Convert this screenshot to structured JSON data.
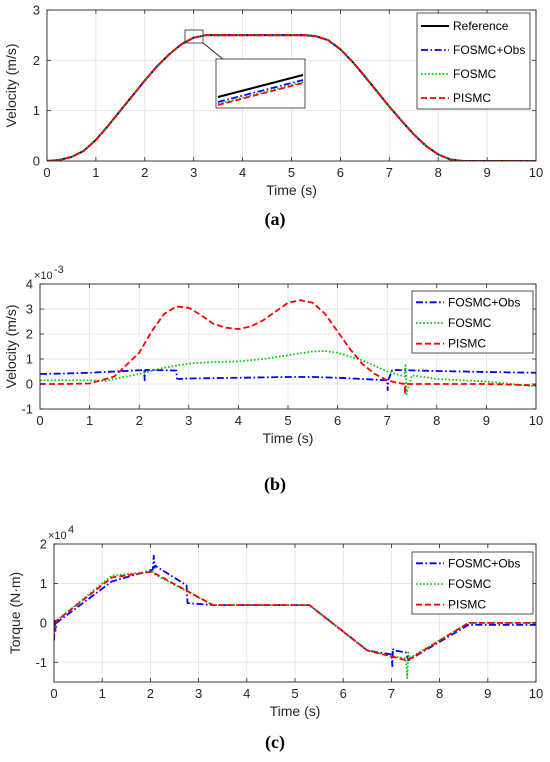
{
  "chart_data": [
    {
      "type": "line",
      "panel_label": "a",
      "xlabel": "Time (s)",
      "ylabel": "Velocity (m/s)",
      "xlim": [
        0,
        10
      ],
      "ylim": [
        0,
        3
      ],
      "xticks": [
        0,
        1,
        2,
        3,
        4,
        5,
        6,
        7,
        8,
        9,
        10
      ],
      "yticks": [
        0,
        1,
        2,
        3
      ],
      "exponent": "",
      "grid": true,
      "legend_position": "top-right",
      "has_inset": true,
      "series": [
        {
          "name": "Reference",
          "color": "#000000",
          "style": "solid",
          "x": [
            0,
            0.25,
            0.5,
            0.75,
            1,
            1.25,
            1.5,
            1.75,
            2,
            2.25,
            2.5,
            2.75,
            3,
            3.25,
            3.5,
            4,
            4.5,
            5,
            5.25,
            5.5,
            5.75,
            6,
            6.25,
            6.5,
            6.75,
            7,
            7.25,
            7.5,
            7.75,
            8,
            8.25,
            8.5,
            9,
            10
          ],
          "y": [
            0,
            0.02,
            0.08,
            0.2,
            0.42,
            0.7,
            1.0,
            1.3,
            1.6,
            1.88,
            2.12,
            2.32,
            2.45,
            2.5,
            2.5,
            2.5,
            2.5,
            2.5,
            2.5,
            2.48,
            2.4,
            2.22,
            1.97,
            1.68,
            1.38,
            1.08,
            0.8,
            0.53,
            0.3,
            0.13,
            0.03,
            0,
            0,
            0
          ]
        },
        {
          "name": "FOSMC+Obs",
          "color": "#0000ff",
          "style": "dashdot",
          "x": [
            0,
            0.25,
            0.5,
            0.75,
            1,
            1.25,
            1.5,
            1.75,
            2,
            2.25,
            2.5,
            2.75,
            3,
            3.25,
            3.5,
            4,
            4.5,
            5,
            5.25,
            5.5,
            5.75,
            6,
            6.25,
            6.5,
            6.75,
            7,
            7.25,
            7.5,
            7.75,
            8,
            8.25,
            8.5,
            9,
            10
          ],
          "y": [
            0,
            0.02,
            0.08,
            0.2,
            0.42,
            0.7,
            1.0,
            1.3,
            1.6,
            1.88,
            2.12,
            2.32,
            2.45,
            2.5,
            2.5,
            2.5,
            2.5,
            2.5,
            2.5,
            2.48,
            2.4,
            2.22,
            1.97,
            1.68,
            1.38,
            1.08,
            0.8,
            0.53,
            0.3,
            0.13,
            0.03,
            0,
            0,
            0
          ]
        },
        {
          "name": "FOSMC",
          "color": "#00cc00",
          "style": "dotted",
          "x": [
            0,
            0.25,
            0.5,
            0.75,
            1,
            1.25,
            1.5,
            1.75,
            2,
            2.25,
            2.5,
            2.75,
            3,
            3.25,
            3.5,
            4,
            4.5,
            5,
            5.25,
            5.5,
            5.75,
            6,
            6.25,
            6.5,
            6.75,
            7,
            7.25,
            7.5,
            7.75,
            8,
            8.25,
            8.5,
            9,
            10
          ],
          "y": [
            0,
            0.02,
            0.08,
            0.2,
            0.42,
            0.7,
            1.0,
            1.3,
            1.6,
            1.88,
            2.12,
            2.32,
            2.45,
            2.5,
            2.5,
            2.5,
            2.5,
            2.5,
            2.5,
            2.48,
            2.4,
            2.22,
            1.97,
            1.68,
            1.38,
            1.08,
            0.8,
            0.53,
            0.3,
            0.13,
            0.03,
            0,
            0,
            0
          ]
        },
        {
          "name": "PISMC",
          "color": "#ff0000",
          "style": "dashed",
          "x": [
            0,
            0.25,
            0.5,
            0.75,
            1,
            1.25,
            1.5,
            1.75,
            2,
            2.25,
            2.5,
            2.75,
            3,
            3.25,
            3.5,
            4,
            4.5,
            5,
            5.25,
            5.5,
            5.75,
            6,
            6.25,
            6.5,
            6.75,
            7,
            7.25,
            7.5,
            7.75,
            8,
            8.25,
            8.5,
            9,
            10
          ],
          "y": [
            0,
            0.02,
            0.08,
            0.2,
            0.42,
            0.7,
            1.0,
            1.3,
            1.6,
            1.88,
            2.12,
            2.32,
            2.45,
            2.5,
            2.5,
            2.5,
            2.5,
            2.5,
            2.5,
            2.48,
            2.4,
            2.22,
            1.97,
            1.68,
            1.38,
            1.08,
            0.8,
            0.53,
            0.3,
            0.13,
            0.03,
            0,
            0,
            0
          ]
        }
      ]
    },
    {
      "type": "line",
      "panel_label": "b",
      "xlabel": "Time (s)",
      "ylabel": "Velocity (m/s)",
      "xlim": [
        0,
        10
      ],
      "ylim": [
        -1,
        4
      ],
      "xticks": [
        0,
        1,
        2,
        3,
        4,
        5,
        6,
        7,
        8,
        9,
        10
      ],
      "yticks": [
        -1,
        0,
        1,
        2,
        3,
        4
      ],
      "exponent": "×10",
      "exponent_power": "-3",
      "grid": true,
      "legend_position": "right",
      "has_inset": false,
      "series": [
        {
          "name": "FOSMC+Obs",
          "color": "#0000ff",
          "style": "dashdot",
          "x": [
            0,
            0.5,
            1,
            1.5,
            2,
            2.1,
            2.11,
            2.12,
            2.5,
            2.75,
            2.76,
            2.8,
            3,
            4,
            5,
            5.5,
            6,
            6.5,
            7,
            7.01,
            7.02,
            7.1,
            7.2,
            8,
            9,
            10
          ],
          "y": [
            0.4,
            0.42,
            0.45,
            0.5,
            0.55,
            0.56,
            0.15,
            0.56,
            0.55,
            0.54,
            0.22,
            0.2,
            0.22,
            0.25,
            0.28,
            0.28,
            0.25,
            0.2,
            0.15,
            -0.25,
            0.15,
            0.55,
            0.56,
            0.52,
            0.48,
            0.45
          ]
        },
        {
          "name": "FOSMC",
          "color": "#00cc00",
          "style": "dotted",
          "x": [
            0,
            0.5,
            1,
            1.3,
            1.5,
            2,
            2.5,
            3,
            3.5,
            4,
            4.5,
            5,
            5.5,
            5.75,
            6,
            6.5,
            7,
            7.35,
            7.37,
            7.39,
            7.5,
            8,
            9,
            10
          ],
          "y": [
            0.15,
            0.15,
            0.15,
            0.12,
            0.2,
            0.4,
            0.65,
            0.82,
            0.88,
            0.9,
            1.0,
            1.15,
            1.3,
            1.32,
            1.25,
            0.95,
            0.5,
            0.3,
            0.75,
            -0.4,
            0.35,
            0.2,
            0.1,
            -0.1
          ]
        },
        {
          "name": "PISMC",
          "color": "#ff0000",
          "style": "dashed",
          "x": [
            0,
            0.5,
            1,
            1.5,
            2,
            2.25,
            2.5,
            2.75,
            3,
            3.25,
            3.5,
            3.75,
            4,
            4.25,
            4.5,
            4.75,
            5,
            5.25,
            5.5,
            5.75,
            6,
            6.25,
            6.5,
            6.75,
            7,
            7.2,
            7.35,
            7.36,
            7.37,
            7.5,
            8,
            9,
            10
          ],
          "y": [
            0,
            0,
            0.02,
            0.3,
            1.25,
            2.1,
            2.8,
            3.1,
            3.05,
            2.75,
            2.4,
            2.25,
            2.2,
            2.3,
            2.55,
            2.9,
            3.25,
            3.35,
            3.25,
            2.8,
            2.1,
            1.4,
            0.8,
            0.4,
            0.15,
            0.05,
            0.0,
            -0.4,
            0.0,
            0.0,
            0.0,
            0.0,
            -0.05
          ]
        }
      ]
    },
    {
      "type": "line",
      "panel_label": "c",
      "xlabel": "Time (s)",
      "ylabel": "Torque (N·m)",
      "xlim": [
        0,
        10
      ],
      "ylim": [
        -1.5,
        2
      ],
      "xticks": [
        0,
        1,
        2,
        3,
        4,
        5,
        6,
        7,
        8,
        9,
        10
      ],
      "yticks": [
        -1,
        0,
        1,
        2
      ],
      "exponent": "×10",
      "exponent_power": "4",
      "grid": true,
      "legend_position": "top-right",
      "has_inset": false,
      "series": [
        {
          "name": "FOSMC+Obs",
          "color": "#0000ff",
          "style": "dashdot",
          "x": [
            0,
            0.02,
            0.03,
            0.05,
            1.2,
            2.05,
            2.07,
            2.09,
            2.1,
            2.75,
            2.77,
            3.3,
            5.3,
            6.5,
            7.0,
            7.02,
            7.03,
            7.05,
            7.3,
            7.35,
            8.6,
            10
          ],
          "y": [
            -0.45,
            0.1,
            -0.2,
            0.0,
            1.05,
            1.35,
            1.7,
            1.4,
            1.45,
            0.95,
            0.5,
            0.45,
            0.45,
            -0.7,
            -0.8,
            -1.1,
            -0.65,
            -0.7,
            -0.75,
            -0.95,
            -0.05,
            -0.05
          ]
        },
        {
          "name": "FOSMC",
          "color": "#00cc00",
          "style": "dotted",
          "x": [
            0,
            0.05,
            1.2,
            2.05,
            2.1,
            3.3,
            5.3,
            6.5,
            7.0,
            7.3,
            7.33,
            7.35,
            7.37,
            8.6,
            10
          ],
          "y": [
            -0.2,
            0.05,
            1.2,
            1.3,
            1.22,
            0.45,
            0.45,
            -0.7,
            -0.85,
            -0.9,
            -1.4,
            -0.75,
            -0.9,
            0.0,
            0.0
          ]
        },
        {
          "name": "PISMC",
          "color": "#ff0000",
          "style": "dashed",
          "x": [
            0,
            0.05,
            1.2,
            2.05,
            2.1,
            3.3,
            5.3,
            6.5,
            7.0,
            7.3,
            7.4,
            8.6,
            10
          ],
          "y": [
            -0.25,
            0.05,
            1.15,
            1.3,
            1.25,
            0.45,
            0.45,
            -0.7,
            -0.85,
            -0.95,
            -0.9,
            0.0,
            0.0
          ]
        }
      ]
    }
  ]
}
